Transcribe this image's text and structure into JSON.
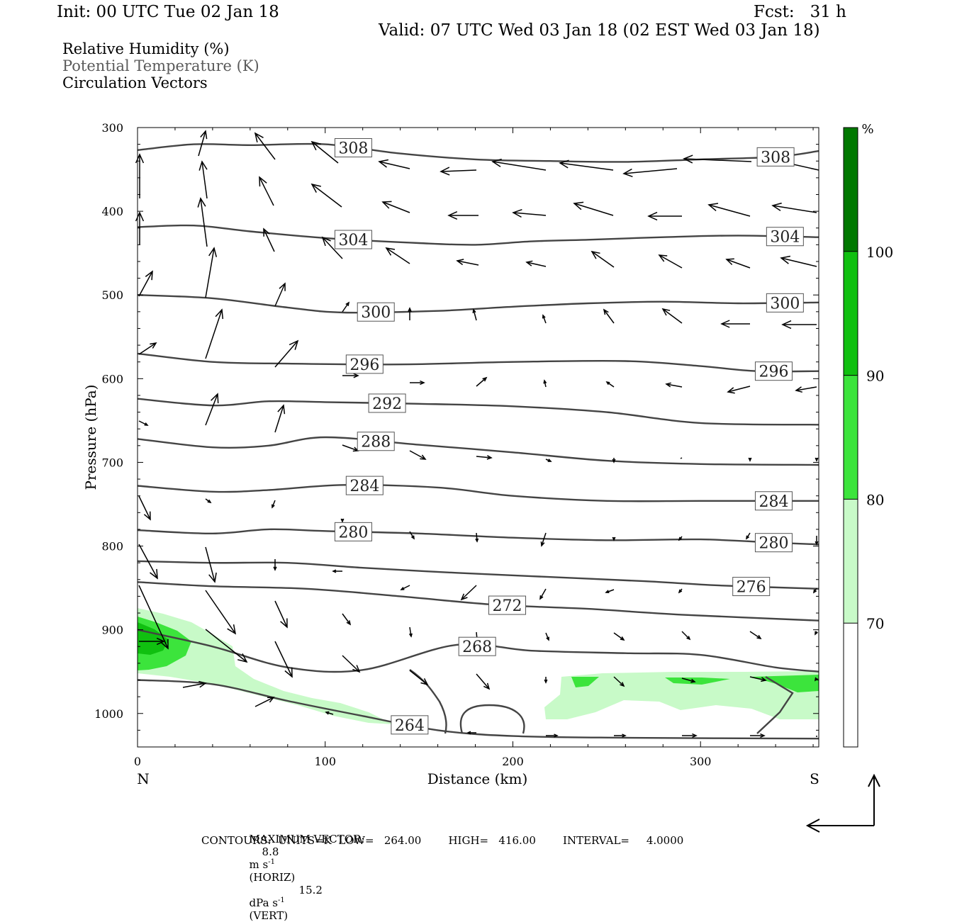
{
  "header": {
    "init": "Init: 00 UTC Tue 02 Jan 18",
    "fcst": "Fcst:   31 h",
    "valid": "Valid: 07 UTC Wed 03 Jan 18 (02 EST Wed 03 Jan 18)"
  },
  "legend": {
    "line1": "Relative Humidity (%)",
    "line2": "Potential Temperature (K)",
    "line3": "Circulation Vectors"
  },
  "footer": {
    "max_vector_label": "MAXIMUM VECTOR:",
    "horiz_value": "8.8",
    "horiz_units": "m s",
    "horiz_tag": "(HORIZ)",
    "vert_value": "15.2",
    "vert_units": "dPa s",
    "vert_tag": "(VERT)",
    "exponent": "-1",
    "contours": "CONTOURS:  UNITS=K  LOW=   264.00        HIGH=   416.00        INTERVAL=     4.0000"
  },
  "colors": {
    "theta_line": "#444444",
    "frame": "#000000",
    "rh_70": "#c8fac8",
    "rh_80": "#3ce43c",
    "rh_90": "#10c010",
    "rh_100": "#007800"
  },
  "chart_data": {
    "type": "cross-section contour",
    "xlabel": "Distance (km)",
    "ylabel": "Pressure (hPa)",
    "xlim": [
      0,
      363
    ],
    "ylim": [
      300,
      1040
    ],
    "y_inverted": true,
    "x_ticks": [
      0,
      100,
      200,
      300
    ],
    "y_ticks": [
      300,
      400,
      500,
      600,
      700,
      800,
      900,
      1000
    ],
    "x_end_labels": {
      "left": "N",
      "right": "S"
    },
    "colorbar": {
      "unit": "%",
      "levels": [
        70,
        80,
        90,
        100
      ],
      "colors": [
        "#ffffff",
        "#c8fac8",
        "#3ce43c",
        "#10c010",
        "#007800"
      ]
    },
    "theta_contours": [
      {
        "value": 308,
        "label_at_km": [
          115,
          340
        ],
        "points": [
          [
            0,
            327
          ],
          [
            30,
            320
          ],
          [
            60,
            321
          ],
          [
            100,
            320
          ],
          [
            140,
            331
          ],
          [
            180,
            338
          ],
          [
            220,
            340
          ],
          [
            260,
            341
          ],
          [
            300,
            338
          ],
          [
            340,
            335
          ],
          [
            363,
            328
          ]
        ]
      },
      {
        "value": 304,
        "label_at_km": [
          115,
          345
        ],
        "points": [
          [
            0,
            419
          ],
          [
            30,
            417
          ],
          [
            60,
            424
          ],
          [
            100,
            432
          ],
          [
            150,
            438
          ],
          [
            180,
            440
          ],
          [
            210,
            436
          ],
          [
            240,
            434
          ],
          [
            280,
            431
          ],
          [
            320,
            429
          ],
          [
            363,
            431
          ]
        ]
      },
      {
        "value": 300,
        "label_at_km": [
          127,
          345
        ],
        "points": [
          [
            0,
            500
          ],
          [
            40,
            504
          ],
          [
            80,
            515
          ],
          [
            110,
            521
          ],
          [
            160,
            519
          ],
          [
            200,
            514
          ],
          [
            240,
            510
          ],
          [
            280,
            508
          ],
          [
            320,
            510
          ],
          [
            363,
            509
          ]
        ]
      },
      {
        "value": 296,
        "label_at_km": [
          121,
          339
        ],
        "points": [
          [
            0,
            570
          ],
          [
            40,
            580
          ],
          [
            80,
            582
          ],
          [
            140,
            583
          ],
          [
            200,
            580
          ],
          [
            260,
            579
          ],
          [
            300,
            585
          ],
          [
            330,
            591
          ],
          [
            363,
            591
          ]
        ]
      },
      {
        "value": 292,
        "label_at_km": [
          133
        ],
        "points": [
          [
            0,
            624
          ],
          [
            40,
            632
          ],
          [
            70,
            627
          ],
          [
            100,
            628
          ],
          [
            150,
            630
          ],
          [
            200,
            633
          ],
          [
            250,
            640
          ],
          [
            300,
            653
          ],
          [
            363,
            655
          ]
        ]
      },
      {
        "value": 288,
        "label_at_km": [
          127
        ],
        "points": [
          [
            0,
            672
          ],
          [
            40,
            682
          ],
          [
            70,
            680
          ],
          [
            100,
            670
          ],
          [
            150,
            679
          ],
          [
            200,
            688
          ],
          [
            250,
            698
          ],
          [
            300,
            702
          ],
          [
            363,
            703
          ]
        ]
      },
      {
        "value": 284,
        "label_at_km": [
          121,
          339
        ],
        "points": [
          [
            0,
            728
          ],
          [
            40,
            735
          ],
          [
            70,
            733
          ],
          [
            110,
            727
          ],
          [
            160,
            730
          ],
          [
            200,
            740
          ],
          [
            250,
            746
          ],
          [
            300,
            746
          ],
          [
            363,
            746
          ]
        ]
      },
      {
        "value": 280,
        "label_at_km": [
          115,
          339
        ],
        "points": [
          [
            0,
            781
          ],
          [
            40,
            785
          ],
          [
            70,
            780
          ],
          [
            100,
            782
          ],
          [
            150,
            785
          ],
          [
            200,
            790
          ],
          [
            250,
            793
          ],
          [
            300,
            792
          ],
          [
            340,
            796
          ],
          [
            363,
            798
          ]
        ]
      },
      {
        "value": 276,
        "label_at_km": [
          327
        ],
        "points": [
          [
            0,
            818
          ],
          [
            40,
            820
          ],
          [
            80,
            820
          ],
          [
            120,
            826
          ],
          [
            170,
            832
          ],
          [
            220,
            837
          ],
          [
            270,
            842
          ],
          [
            310,
            847
          ],
          [
            363,
            851
          ]
        ]
      },
      {
        "value": 272,
        "label_at_km": [
          197
        ],
        "points": [
          [
            0,
            843
          ],
          [
            40,
            848
          ],
          [
            90,
            851
          ],
          [
            140,
            860
          ],
          [
            190,
            870
          ],
          [
            240,
            875
          ],
          [
            290,
            882
          ],
          [
            363,
            889
          ]
        ]
      },
      {
        "value": 268,
        "label_at_km": [
          181
        ],
        "points": [
          [
            0,
            900
          ],
          [
            40,
            920
          ],
          [
            80,
            945
          ],
          [
            120,
            948
          ],
          [
            170,
            918
          ],
          [
            210,
            925
          ],
          [
            260,
            928
          ],
          [
            300,
            930
          ],
          [
            340,
            945
          ],
          [
            363,
            950
          ]
        ]
      },
      {
        "value": 264,
        "label_at_km": [
          145
        ],
        "points": [
          [
            0,
            960
          ],
          [
            40,
            965
          ],
          [
            80,
            985
          ],
          [
            120,
            1003
          ],
          [
            160,
            1020
          ],
          [
            200,
            1027
          ],
          [
            260,
            1029
          ],
          [
            363,
            1030
          ]
        ]
      }
    ]
  }
}
